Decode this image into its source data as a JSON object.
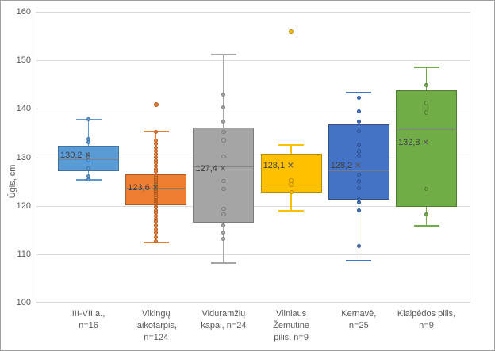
{
  "window": {
    "background": "#ffffff",
    "frame_border_color": "#9f9f9f",
    "gridline_color": "#d9d9d9",
    "axis_text_color": "#595959",
    "label_text_color": "#404040"
  },
  "chart_data": {
    "type": "boxplot",
    "title": "",
    "ylabel": "Ūgis, cm",
    "xlabel": "",
    "ylim": [
      100,
      160
    ],
    "yticks": [
      160,
      150,
      140,
      130,
      120,
      110,
      100
    ],
    "grid": true,
    "legend": "none",
    "decimal_separator": ",",
    "groups": [
      {
        "label_lines": [
          "III-VII a.,",
          "n=16"
        ],
        "n": 16,
        "fill": "#5B9BD5",
        "stroke": "#41719C",
        "whisker_low": 125.3,
        "q1": 127.2,
        "median": 129.6,
        "q3": 132.4,
        "whisker_high": 137.8,
        "mean": 130.2,
        "mean_label": "130,2",
        "outliers": [],
        "points_filled": [
          137.8,
          133.8,
          133.1,
          126.1,
          125.5
        ],
        "points_open": [
          130.6,
          130.1,
          129.4,
          127.7
        ]
      },
      {
        "label_lines": [
          "Vikingų",
          "laikotarpis,",
          "n=124"
        ],
        "n": 124,
        "fill": "#ED7D31",
        "stroke": "#AE5A21",
        "whisker_low": 112.4,
        "q1": 120.1,
        "median": 123.7,
        "q3": 126.5,
        "whisker_high": 135.3,
        "mean": 123.6,
        "mean_label": "123,6",
        "outliers": [
          140.9
        ],
        "points_filled": [
          135.3,
          133.4,
          132.7,
          132.0,
          131.3,
          130.6,
          130.0,
          129.4,
          128.8,
          128.2,
          127.6,
          127.0,
          119.7,
          119.1,
          118.5,
          117.9,
          117.3,
          116.7,
          116.0,
          115.2,
          114.4,
          113.5,
          112.7
        ],
        "points_open": [
          126.2,
          125.7,
          125.2,
          124.7,
          124.2,
          123.7,
          123.2,
          122.7,
          122.2,
          121.7,
          121.2,
          120.7,
          120.3
        ]
      },
      {
        "label_lines": [
          "Viduramžių",
          "kapai, n=24"
        ],
        "n": 24,
        "fill": "#A5A5A5",
        "stroke": "#7B7B7B",
        "whisker_low": 108.2,
        "q1": 116.5,
        "median": 128.1,
        "q3": 136.2,
        "whisker_high": 151.1,
        "mean": 127.4,
        "mean_label": "127,4",
        "outliers": [],
        "points_filled": [
          142.9,
          140.3,
          137.3,
          116.0,
          114.4,
          113.1
        ],
        "points_open": [
          135.2,
          133.5,
          130.2,
          125.1,
          123.5,
          119.4,
          118.2
        ]
      },
      {
        "label_lines": [
          "Vilniaus",
          "Žemutinė",
          "pilis, n=9"
        ],
        "n": 9,
        "fill": "#FFC000",
        "stroke": "#BC8C00",
        "whisker_low": 118.9,
        "q1": 122.8,
        "median": 124.4,
        "q3": 130.8,
        "whisker_high": 132.6,
        "mean": 128.1,
        "mean_label": "128,1",
        "outliers": [
          155.9
        ],
        "points_filled": [
          122.8
        ],
        "points_open": [
          125.2,
          124.4
        ]
      },
      {
        "label_lines": [
          "Kernavė,",
          "n=25"
        ],
        "n": 25,
        "fill": "#4472C4",
        "stroke": "#2F528F",
        "whisker_low": 108.6,
        "q1": 121.2,
        "median": 127.3,
        "q3": 136.8,
        "whisker_high": 143.4,
        "mean": 128.2,
        "mean_label": "128,2",
        "outliers": [],
        "points_filled": [
          142.2,
          139.5,
          137.3,
          121.3,
          120.7,
          119.0,
          111.7
        ],
        "points_open": [
          135.4,
          132.6,
          131.2,
          130.3,
          126.4,
          125.0,
          123.6
        ]
      },
      {
        "label_lines": [
          "Klaipėdos pilis,",
          "n=9"
        ],
        "n": 9,
        "fill": "#70AD47",
        "stroke": "#507E32",
        "whisker_low": 115.9,
        "q1": 119.7,
        "median": 135.8,
        "q3": 143.8,
        "whisker_high": 148.5,
        "mean": 132.8,
        "mean_label": "132,8",
        "outliers": [],
        "points_filled": [
          144.9,
          118.3
        ],
        "points_open": [
          141.2,
          139.2,
          123.5
        ]
      }
    ]
  }
}
